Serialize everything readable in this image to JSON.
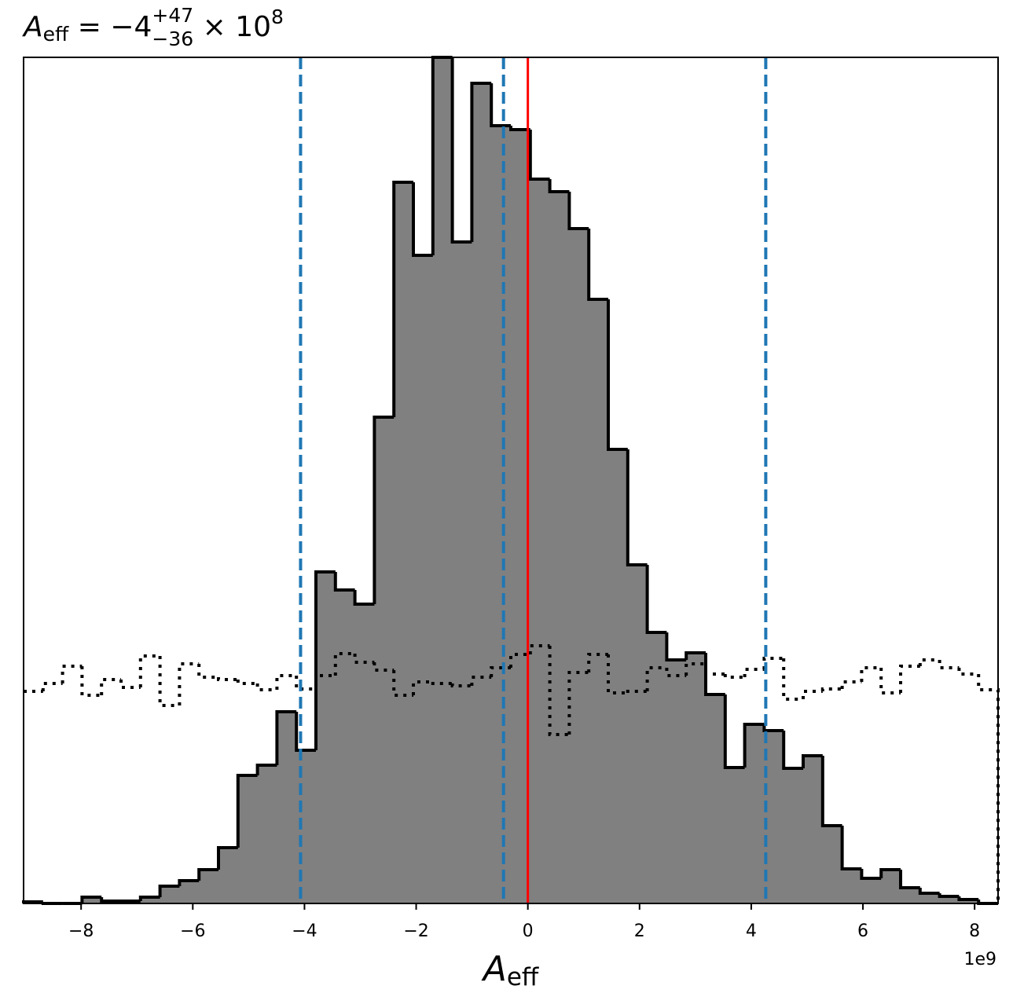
{
  "chart_data": {
    "type": "histogram",
    "title": {
      "symbol": "A",
      "subscript": "eff",
      "main": " = −4",
      "upper": "+47",
      "lower": "−36",
      "times": " × 10",
      "exponent": "8"
    },
    "xlabel": {
      "symbol": "A",
      "subscript": "eff"
    },
    "x_offset_label": "1e9",
    "xlim": [
      -9.03,
      8.42
    ],
    "ylim": [
      0,
      1077
    ],
    "xticks": [
      {
        "value": -8,
        "label": "−8"
      },
      {
        "value": -6,
        "label": "−6"
      },
      {
        "value": -4,
        "label": "−4"
      },
      {
        "value": -2,
        "label": "−2"
      },
      0,
      2,
      4,
      6,
      8
    ],
    "bins": [
      -9.03,
      -8.681,
      -8.332,
      -7.983,
      -7.634,
      -7.285,
      -6.936,
      -6.587,
      -6.238,
      -5.889,
      -5.54,
      -5.191,
      -4.842,
      -4.493,
      -4.144,
      -3.795,
      -3.446,
      -3.097,
      -2.748,
      -2.399,
      -2.05,
      -1.701,
      -1.352,
      -1.003,
      -0.654,
      -0.305,
      0.044,
      0.393,
      0.742,
      1.091,
      1.44,
      1.789,
      2.138,
      2.487,
      2.836,
      3.185,
      3.534,
      3.883,
      4.232,
      4.581,
      4.93,
      5.279,
      5.628,
      5.977,
      6.326,
      6.675,
      7.024,
      7.373,
      7.722,
      8.071,
      8.42
    ],
    "series": [
      {
        "style": "filled",
        "color": "#808080",
        "edgecolor": "#000000",
        "values": [
          2,
          0,
          0,
          8,
          3,
          3,
          8,
          22,
          29,
          43,
          71,
          163,
          176,
          244,
          195,
          422,
          399,
          381,
          619,
          918,
          825,
          1077,
          842,
          1044,
          990,
          985,
          922,
          906,
          859,
          769,
          578,
          431,
          345,
          310,
          319,
          266,
          173,
          228,
          220,
          172,
          188,
          99,
          44,
          32,
          43,
          20,
          13,
          9,
          5,
          0
        ]
      },
      {
        "style": "dotted",
        "color": "#000000",
        "values": [
          270,
          280,
          302,
          265,
          285,
          275,
          315,
          252,
          305,
          288,
          285,
          280,
          272,
          290,
          273,
          290,
          318,
          307,
          297,
          265,
          282,
          280,
          277,
          288,
          300,
          317,
          328,
          215,
          294,
          317,
          268,
          270,
          300,
          290,
          305,
          292,
          288,
          298,
          312,
          260,
          270,
          273,
          282,
          300,
          268,
          302,
          310,
          300,
          292,
          272
        ]
      }
    ],
    "vlines": [
      {
        "value": -4.07,
        "color": "#1f77b4",
        "style": "dashed"
      },
      {
        "value": -0.436,
        "color": "#1f77b4",
        "style": "dashed"
      },
      {
        "value": 4.26,
        "color": "#1f77b4",
        "style": "dashed"
      },
      {
        "value": 0,
        "color": "#ff0000",
        "style": "solid"
      }
    ]
  }
}
